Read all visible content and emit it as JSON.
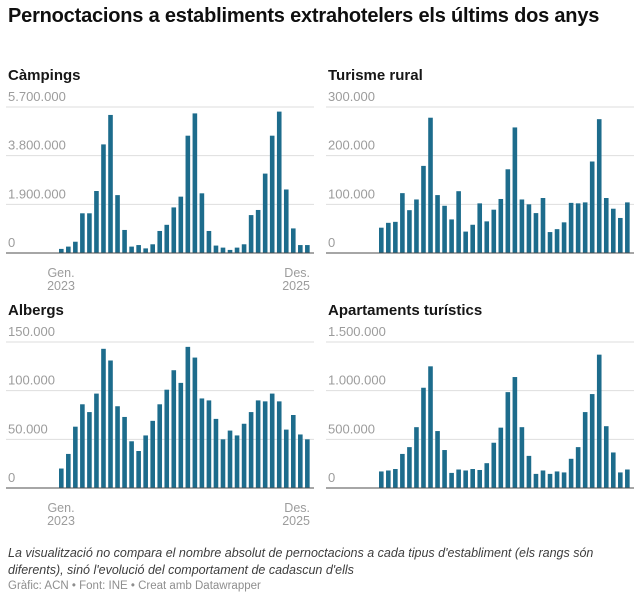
{
  "header": {
    "title": "Pernoctacions a establiments extrahotelers els últims dos anys"
  },
  "colors": {
    "bar": "#1d6c8c",
    "gridline": "#dedede",
    "axis_line": "#4d4d4d",
    "tick_label": "#9c9c9c",
    "title": "#0f0f0f"
  },
  "chart_data": [
    {
      "type": "bar",
      "key": "campings",
      "title": "Càmpings",
      "x_range": [
        "2023-01",
        "2025-12"
      ],
      "x_interval": "monthly",
      "n_points": 36,
      "x_tick_labels": [
        "Gen. 2023",
        "Des. 2025"
      ],
      "ylim": [
        0,
        5700000
      ],
      "y_ticks": [
        0,
        1900000,
        3800000,
        5700000
      ],
      "y_tick_labels": [
        "0",
        "1.900.000",
        "3.800.000",
        "5.700.000"
      ],
      "grid": true,
      "values": [
        160000,
        250000,
        440000,
        1550000,
        1550000,
        2420000,
        4240000,
        5390000,
        2260000,
        900000,
        250000,
        310000,
        180000,
        340000,
        860000,
        1100000,
        1780000,
        2200000,
        4580000,
        5450000,
        2330000,
        860000,
        290000,
        210000,
        120000,
        210000,
        340000,
        1480000,
        1680000,
        3100000,
        4580000,
        5520000,
        2480000,
        960000,
        310000,
        310000
      ]
    },
    {
      "type": "bar",
      "key": "turisme-rural",
      "title": "Turisme rural",
      "x_range": [
        "2023-01",
        "2025-12"
      ],
      "x_interval": "monthly",
      "n_points": 36,
      "x_tick_labels": [],
      "ylim": [
        0,
        300000
      ],
      "y_ticks": [
        0,
        100000,
        200000,
        300000
      ],
      "y_tick_labels": [
        "0",
        "100.000",
        "200.000",
        "300.000"
      ],
      "grid": true,
      "values": [
        52000,
        62000,
        64000,
        123000,
        88000,
        110000,
        179000,
        278000,
        119000,
        97000,
        69000,
        127000,
        44000,
        58000,
        102000,
        65000,
        89000,
        111000,
        172000,
        258000,
        110000,
        100000,
        82000,
        113000,
        43000,
        49000,
        63000,
        103000,
        102000,
        104000,
        188000,
        275000,
        113000,
        91000,
        72000,
        104000
      ]
    },
    {
      "type": "bar",
      "key": "albergs",
      "title": "Albergs",
      "x_range": [
        "2023-01",
        "2025-12"
      ],
      "x_interval": "monthly",
      "n_points": 36,
      "x_tick_labels": [
        "Gen. 2023",
        "Des. 2025"
      ],
      "ylim": [
        0,
        150000
      ],
      "y_ticks": [
        0,
        50000,
        100000,
        150000
      ],
      "y_tick_labels": [
        "0",
        "50.000",
        "100.000",
        "150.000"
      ],
      "grid": true,
      "values": [
        20000,
        35000,
        63000,
        86000,
        78000,
        97000,
        143000,
        131000,
        84000,
        73000,
        48000,
        38000,
        54000,
        69000,
        86000,
        101000,
        121000,
        108000,
        145000,
        134000,
        92000,
        90000,
        71000,
        50000,
        59000,
        54000,
        66000,
        78000,
        90000,
        89000,
        97000,
        89000,
        60000,
        75000,
        55000,
        50000
      ]
    },
    {
      "type": "bar",
      "key": "apartaments-turistics",
      "title": "Apartaments turístics",
      "x_range": [
        "2023-01",
        "2025-12"
      ],
      "x_interval": "monthly",
      "n_points": 36,
      "x_tick_labels": [],
      "ylim": [
        0,
        1500000
      ],
      "y_ticks": [
        0,
        500000,
        1000000,
        1500000
      ],
      "y_tick_labels": [
        "0",
        "500.000",
        "1.000.000",
        "1.500.000"
      ],
      "grid": true,
      "values": [
        170000,
        180000,
        195000,
        350000,
        420000,
        625000,
        1030000,
        1250000,
        585000,
        390000,
        155000,
        190000,
        180000,
        195000,
        185000,
        255000,
        465000,
        620000,
        985000,
        1140000,
        625000,
        330000,
        145000,
        180000,
        145000,
        170000,
        160000,
        300000,
        420000,
        780000,
        965000,
        1370000,
        635000,
        365000,
        160000,
        190000
      ]
    }
  ],
  "footer": {
    "note": "La visualització no compara el nombre absolut de pernoctacions a cada tipus d'establiment (els rangs són diferents), sinó l'evolució del comportament de cadascun d'ells",
    "byline": "Gràfic: ACN • Font: INE • Creat amb Datawrapper"
  }
}
